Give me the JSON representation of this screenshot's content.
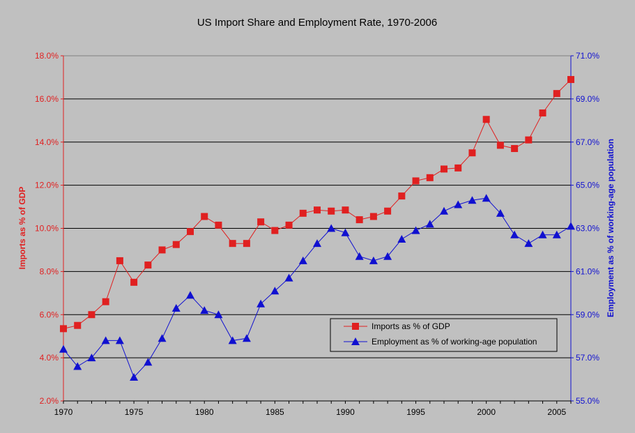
{
  "chart_data": {
    "type": "line",
    "title": "US Import Share and Employment Rate, 1970-2006",
    "x": [
      1970,
      1971,
      1972,
      1973,
      1974,
      1975,
      1976,
      1977,
      1978,
      1979,
      1980,
      1981,
      1982,
      1983,
      1984,
      1985,
      1986,
      1987,
      1988,
      1989,
      1990,
      1991,
      1992,
      1993,
      1994,
      1995,
      1996,
      1997,
      1998,
      1999,
      2000,
      2001,
      2002,
      2003,
      2004,
      2005,
      2006
    ],
    "x_ticks": [
      "1970",
      "1975",
      "1980",
      "1985",
      "1990",
      "1995",
      "2000",
      "2005"
    ],
    "x_tick_values": [
      1970,
      1975,
      1980,
      1985,
      1990,
      1995,
      2000,
      2005
    ],
    "xlim": [
      1970,
      2006
    ],
    "ylabel_left": "Imports as % of GDP",
    "ylabel_right": "Employment as % of working-age population",
    "ylim_left": [
      2.0,
      18.0
    ],
    "ylim_right": [
      55.0,
      71.0
    ],
    "y_ticks_left": [
      "2.0%",
      "4.0%",
      "6.0%",
      "8.0%",
      "10.0%",
      "12.0%",
      "14.0%",
      "16.0%",
      "18.0%"
    ],
    "y_ticks_right": [
      "55.0%",
      "57.0%",
      "59.0%",
      "61.0%",
      "63.0%",
      "65.0%",
      "67.0%",
      "69.0%",
      "71.0%"
    ],
    "grid": true,
    "legend_position": "bottom-right",
    "series": [
      {
        "name": "Imports as % of GDP",
        "axis": "left",
        "color": "#e02020",
        "marker": "square",
        "values": [
          5.35,
          5.5,
          6.0,
          6.6,
          8.5,
          7.5,
          8.3,
          9.0,
          9.25,
          9.85,
          10.55,
          10.15,
          9.3,
          9.3,
          10.3,
          9.9,
          10.15,
          10.7,
          10.85,
          10.8,
          10.85,
          10.4,
          10.55,
          10.8,
          11.5,
          12.2,
          12.35,
          12.75,
          12.8,
          13.5,
          15.05,
          13.85,
          13.7,
          14.1,
          15.35,
          16.25,
          16.9
        ]
      },
      {
        "name": "Employment as % of working-age population",
        "axis": "right",
        "color": "#1010d0",
        "marker": "triangle",
        "values": [
          57.4,
          56.6,
          57.0,
          57.8,
          57.8,
          56.1,
          56.8,
          57.9,
          59.3,
          59.9,
          59.2,
          59.0,
          57.8,
          57.9,
          59.5,
          60.1,
          60.7,
          61.5,
          62.3,
          63.0,
          62.8,
          61.7,
          61.5,
          61.7,
          62.5,
          62.9,
          63.2,
          63.8,
          64.1,
          64.3,
          64.4,
          63.7,
          62.7,
          62.3,
          62.7,
          62.7,
          63.1
        ]
      }
    ]
  }
}
